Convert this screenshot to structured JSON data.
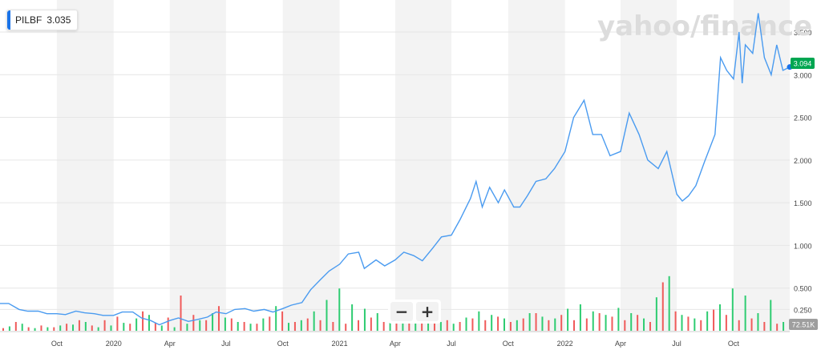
{
  "app": {
    "watermark": "yahoo/finance",
    "ticker": "PILBF",
    "ticker_value": "3.035",
    "last_price_label": "3.094",
    "volume_label": "72.51K",
    "zoom_out_label": "−",
    "zoom_in_label": "+"
  },
  "colors": {
    "line": "#4a9bf0",
    "vol_up": "#2ecc71",
    "vol_down": "#f05a5a",
    "badge": "#00a651",
    "band": "#f3f3f3",
    "accent": "#1a73e8"
  },
  "chart_data": {
    "type": "line",
    "title": "",
    "xlabel": "",
    "ylabel": "",
    "x_range": [
      "2019-07-01",
      "2022-12-31"
    ],
    "ylim": [
      0,
      3.8
    ],
    "y_ticks": [
      "0.250",
      "0.500",
      "1.000",
      "1.500",
      "2.000",
      "2.500",
      "3.000",
      "3.500"
    ],
    "x_ticks": [
      {
        "label": "Oct",
        "date": "2019-10-01"
      },
      {
        "label": "2020",
        "date": "2020-01-01"
      },
      {
        "label": "Apr",
        "date": "2020-04-01"
      },
      {
        "label": "Jul",
        "date": "2020-07-01"
      },
      {
        "label": "Oct",
        "date": "2020-10-01"
      },
      {
        "label": "2021",
        "date": "2021-01-01"
      },
      {
        "label": "Apr",
        "date": "2021-04-01"
      },
      {
        "label": "Jul",
        "date": "2021-07-01"
      },
      {
        "label": "Oct",
        "date": "2021-10-01"
      },
      {
        "label": "2022",
        "date": "2022-01-01"
      },
      {
        "label": "Apr",
        "date": "2022-04-01"
      },
      {
        "label": "Jul",
        "date": "2022-07-01"
      },
      {
        "label": "Oct",
        "date": "2022-10-01"
      }
    ],
    "legend_position": "top-left",
    "grid": true,
    "series": [
      {
        "name": "PILBF",
        "points": [
          [
            "2019-07-01",
            0.32
          ],
          [
            "2019-07-15",
            0.32
          ],
          [
            "2019-08-01",
            0.25
          ],
          [
            "2019-08-15",
            0.23
          ],
          [
            "2019-09-01",
            0.23
          ],
          [
            "2019-09-15",
            0.2
          ],
          [
            "2019-10-01",
            0.2
          ],
          [
            "2019-10-15",
            0.19
          ],
          [
            "2019-11-01",
            0.23
          ],
          [
            "2019-11-15",
            0.21
          ],
          [
            "2019-12-01",
            0.2
          ],
          [
            "2019-12-15",
            0.18
          ],
          [
            "2020-01-01",
            0.18
          ],
          [
            "2020-01-15",
            0.22
          ],
          [
            "2020-02-01",
            0.22
          ],
          [
            "2020-02-15",
            0.15
          ],
          [
            "2020-03-01",
            0.12
          ],
          [
            "2020-03-15",
            0.07
          ],
          [
            "2020-04-01",
            0.12
          ],
          [
            "2020-04-15",
            0.15
          ],
          [
            "2020-05-01",
            0.11
          ],
          [
            "2020-05-15",
            0.13
          ],
          [
            "2020-06-01",
            0.16
          ],
          [
            "2020-06-15",
            0.22
          ],
          [
            "2020-07-01",
            0.2
          ],
          [
            "2020-07-15",
            0.25
          ],
          [
            "2020-08-01",
            0.26
          ],
          [
            "2020-08-15",
            0.23
          ],
          [
            "2020-09-01",
            0.25
          ],
          [
            "2020-09-15",
            0.22
          ],
          [
            "2020-10-01",
            0.26
          ],
          [
            "2020-10-15",
            0.3
          ],
          [
            "2020-11-01",
            0.33
          ],
          [
            "2020-11-15",
            0.48
          ],
          [
            "2020-12-01",
            0.6
          ],
          [
            "2020-12-15",
            0.7
          ],
          [
            "2021-01-01",
            0.78
          ],
          [
            "2021-01-15",
            0.9
          ],
          [
            "2021-02-01",
            0.92
          ],
          [
            "2021-02-10",
            0.73
          ],
          [
            "2021-03-01",
            0.83
          ],
          [
            "2021-03-15",
            0.76
          ],
          [
            "2021-04-01",
            0.83
          ],
          [
            "2021-04-15",
            0.92
          ],
          [
            "2021-05-01",
            0.88
          ],
          [
            "2021-05-15",
            0.82
          ],
          [
            "2021-06-01",
            0.97
          ],
          [
            "2021-06-15",
            1.1
          ],
          [
            "2021-07-01",
            1.12
          ],
          [
            "2021-07-15",
            1.3
          ],
          [
            "2021-08-01",
            1.55
          ],
          [
            "2021-08-10",
            1.75
          ],
          [
            "2021-08-20",
            1.45
          ],
          [
            "2021-09-01",
            1.68
          ],
          [
            "2021-09-15",
            1.5
          ],
          [
            "2021-09-25",
            1.65
          ],
          [
            "2021-10-10",
            1.45
          ],
          [
            "2021-10-20",
            1.45
          ],
          [
            "2021-11-01",
            1.58
          ],
          [
            "2021-11-15",
            1.75
          ],
          [
            "2021-12-01",
            1.78
          ],
          [
            "2021-12-15",
            1.9
          ],
          [
            "2022-01-01",
            2.1
          ],
          [
            "2022-01-15",
            2.5
          ],
          [
            "2022-02-01",
            2.7
          ],
          [
            "2022-02-15",
            2.3
          ],
          [
            "2022-03-01",
            2.3
          ],
          [
            "2022-03-15",
            2.05
          ],
          [
            "2022-04-01",
            2.1
          ],
          [
            "2022-04-15",
            2.55
          ],
          [
            "2022-05-01",
            2.3
          ],
          [
            "2022-05-15",
            2.0
          ],
          [
            "2022-06-01",
            1.9
          ],
          [
            "2022-06-15",
            2.1
          ],
          [
            "2022-07-01",
            1.6
          ],
          [
            "2022-07-10",
            1.52
          ],
          [
            "2022-07-20",
            1.58
          ],
          [
            "2022-08-01",
            1.7
          ],
          [
            "2022-08-15",
            1.98
          ],
          [
            "2022-09-01",
            2.3
          ],
          [
            "2022-09-10",
            3.2
          ],
          [
            "2022-09-20",
            3.05
          ],
          [
            "2022-10-01",
            2.95
          ],
          [
            "2022-10-10",
            3.5
          ],
          [
            "2022-10-15",
            2.9
          ],
          [
            "2022-10-20",
            3.35
          ],
          [
            "2022-11-01",
            3.25
          ],
          [
            "2022-11-10",
            3.72
          ],
          [
            "2022-11-20",
            3.2
          ],
          [
            "2022-12-01",
            3.0
          ],
          [
            "2022-12-10",
            3.35
          ],
          [
            "2022-12-20",
            3.05
          ],
          [
            "2022-12-31",
            3.09
          ]
        ]
      }
    ],
    "volume": {
      "unit": "K",
      "up": [
        5,
        8,
        3,
        4,
        6,
        7,
        10,
        4,
        6,
        9,
        14,
        18,
        6,
        4,
        8,
        12,
        20,
        15,
        10,
        8,
        14,
        28,
        9,
        12,
        22,
        35,
        48,
        30,
        25,
        20,
        28,
        22,
        18,
        12,
        10,
        8,
        15,
        22,
        18,
        14,
        12,
        20,
        16,
        14,
        25,
        30,
        22,
        18,
        26,
        20,
        14,
        38,
        62,
        18,
        14,
        22,
        30,
        48,
        40,
        20,
        35,
        10
      ],
      "down": [
        3,
        10,
        4,
        6,
        4,
        8,
        12,
        6,
        12,
        16,
        8,
        22,
        9,
        15,
        40,
        18,
        12,
        28,
        14,
        10,
        8,
        16,
        22,
        10,
        14,
        12,
        10,
        8,
        12,
        15,
        10,
        20,
        35,
        25,
        18,
        12,
        10,
        14,
        12,
        16,
        10,
        14,
        20,
        12,
        18,
        12,
        14,
        20,
        16,
        12,
        18,
        10,
        55,
        22,
        16,
        12,
        24,
        18,
        12,
        14,
        10,
        8
      ]
    }
  }
}
